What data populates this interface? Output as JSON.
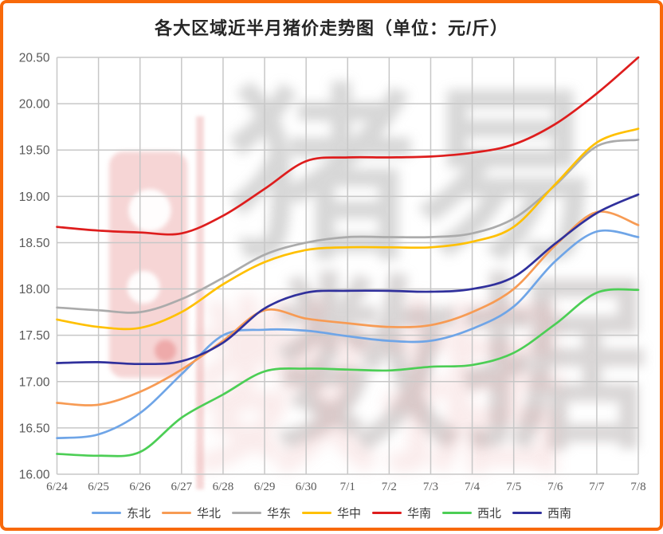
{
  "page": {
    "border_color": "#F8690A",
    "background": "#FFFFFF"
  },
  "title": "各大区域近半月猪价走势图（单位：元/斤）",
  "watermark": {
    "full_text": "猪易数据",
    "line1": "猪易",
    "line2": "数据",
    "line3": "数据",
    "logo": "pig-brand-logo"
  },
  "axis_style": {
    "grid_color": "#C7C7C7",
    "tick_color": "#595959"
  },
  "chart_data": {
    "type": "line",
    "title": "各大区域近半月猪价走势图（单位：元/斤）",
    "xlabel": "",
    "ylabel": "",
    "grid": true,
    "legend_position": "bottom",
    "ylim": [
      16.0,
      20.5
    ],
    "y_tick_step": 0.5,
    "y_ticks": [
      "20.50",
      "20.00",
      "19.50",
      "19.00",
      "18.50",
      "18.00",
      "17.50",
      "17.00",
      "16.50",
      "16.00"
    ],
    "x": [
      "6/24",
      "6/25",
      "6/26",
      "6/27",
      "6/28",
      "6/29",
      "6/30",
      "7/1",
      "7/2",
      "7/3",
      "7/4",
      "7/5",
      "7/6",
      "7/7",
      "7/8"
    ],
    "series": [
      {
        "name": "东北",
        "color": "#6FA5E7",
        "values": [
          16.39,
          16.43,
          16.66,
          17.08,
          17.5,
          17.56,
          17.55,
          17.49,
          17.44,
          17.44,
          17.57,
          17.81,
          18.3,
          18.62,
          18.56
        ]
      },
      {
        "name": "华北",
        "color": "#F79B54",
        "values": [
          16.77,
          16.75,
          16.89,
          17.13,
          17.44,
          17.77,
          17.68,
          17.63,
          17.59,
          17.61,
          17.75,
          18.0,
          18.47,
          18.83,
          18.69
        ]
      },
      {
        "name": "华东",
        "color": "#ABABAB",
        "values": [
          17.8,
          17.77,
          17.75,
          17.89,
          18.12,
          18.37,
          18.5,
          18.56,
          18.56,
          18.56,
          18.6,
          18.76,
          19.12,
          19.54,
          19.61
        ]
      },
      {
        "name": "华中",
        "color": "#FFC000",
        "values": [
          17.67,
          17.59,
          17.58,
          17.75,
          18.05,
          18.29,
          18.42,
          18.45,
          18.45,
          18.45,
          18.51,
          18.67,
          19.13,
          19.58,
          19.73
        ]
      },
      {
        "name": "华南",
        "color": "#DE1D1D",
        "values": [
          18.67,
          18.63,
          18.61,
          18.6,
          18.79,
          19.08,
          19.38,
          19.42,
          19.42,
          19.43,
          19.47,
          19.56,
          19.78,
          20.11,
          20.5
        ]
      },
      {
        "name": "西北",
        "color": "#4CCE55",
        "values": [
          16.22,
          16.2,
          16.24,
          16.61,
          16.86,
          17.11,
          17.14,
          17.13,
          17.12,
          17.16,
          17.18,
          17.31,
          17.62,
          17.96,
          17.99
        ]
      },
      {
        "name": "西南",
        "color": "#30309C",
        "values": [
          17.2,
          17.21,
          17.19,
          17.22,
          17.42,
          17.79,
          17.96,
          17.98,
          17.98,
          17.97,
          18.0,
          18.13,
          18.49,
          18.82,
          19.02
        ]
      }
    ]
  }
}
